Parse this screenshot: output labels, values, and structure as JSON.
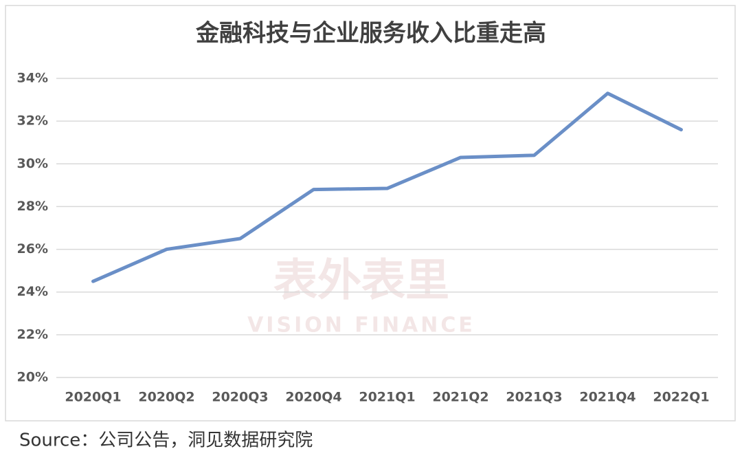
{
  "chart_data": {
    "type": "line",
    "title": "金融科技与企业服务收入比重走高",
    "categories": [
      "2020Q1",
      "2020Q2",
      "2020Q3",
      "2020Q4",
      "2021Q1",
      "2021Q2",
      "2021Q3",
      "2021Q4",
      "2022Q1"
    ],
    "values": [
      24.5,
      26.0,
      26.5,
      28.8,
      28.85,
      30.3,
      30.4,
      33.3,
      31.6
    ],
    "color": "#6a8fc7",
    "ylim": [
      20,
      34
    ],
    "yticks": [
      {
        "value": 20,
        "label": "20%"
      },
      {
        "value": 22,
        "label": "22%"
      },
      {
        "value": 24,
        "label": "24%"
      },
      {
        "value": 26,
        "label": "26%"
      },
      {
        "value": 28,
        "label": "28%"
      },
      {
        "value": 30,
        "label": "30%"
      },
      {
        "value": 32,
        "label": "32%"
      },
      {
        "value": 34,
        "label": "34%"
      }
    ],
    "grid": true,
    "watermark": [
      "表外表里",
      "VISION FINANCE"
    ],
    "source": "Source：公司公告，洞见数据研究院"
  }
}
